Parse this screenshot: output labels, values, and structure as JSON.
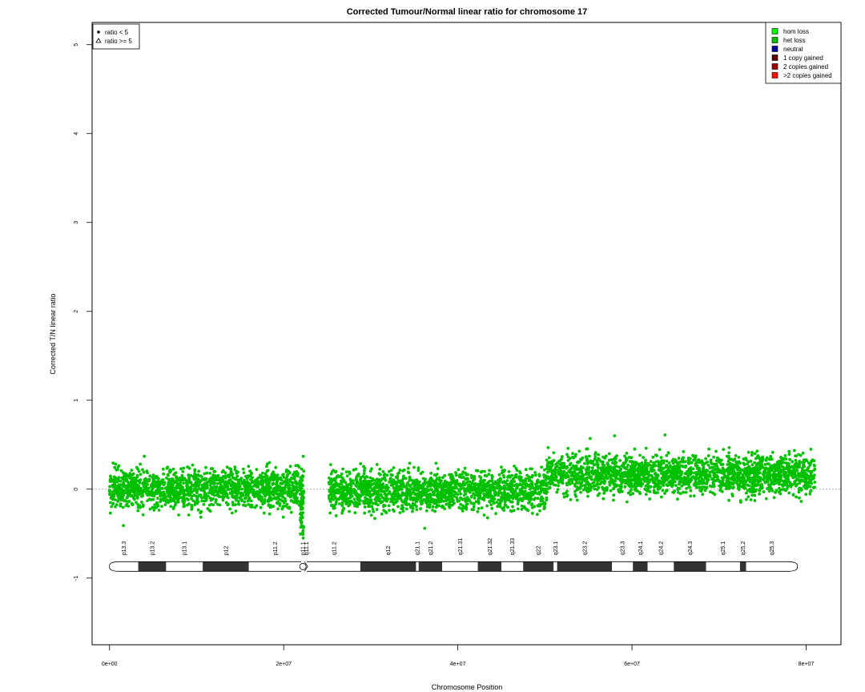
{
  "chart_data": {
    "type": "scatter",
    "title": "Corrected Tumour/Normal linear ratio for chromosome  17",
    "xlabel": "Chromosome Position",
    "ylabel": "Corrected T/N linear ratio",
    "xlim": [
      -2000000,
      84000000
    ],
    "ylim": [
      -1.75,
      5.25
    ],
    "x_ticks": [
      {
        "value": 0,
        "label": "0e+00"
      },
      {
        "value": 20000000,
        "label": "2e+07"
      },
      {
        "value": 40000000,
        "label": "4e+07"
      },
      {
        "value": 60000000,
        "label": "6e+07"
      },
      {
        "value": 80000000,
        "label": "8e+07"
      }
    ],
    "y_ticks": [
      {
        "value": -1,
        "label": "-1"
      },
      {
        "value": 0,
        "label": "0"
      },
      {
        "value": 1,
        "label": "1"
      },
      {
        "value": 2,
        "label": "2"
      },
      {
        "value": 3,
        "label": "3"
      },
      {
        "value": 4,
        "label": "4"
      },
      {
        "value": 5,
        "label": "5"
      }
    ],
    "reference_line": 0,
    "point_color": "#00c000",
    "segments": [
      {
        "x_start": 0,
        "x_end": 22300000,
        "mean": 0.0,
        "spread": 0.11
      },
      {
        "x_start": 25200000,
        "x_end": 50200000,
        "mean": -0.02,
        "spread": 0.11
      },
      {
        "x_start": 50200000,
        "x_end": 81000000,
        "mean": 0.16,
        "spread": 0.11
      }
    ],
    "notable_points": [
      {
        "x": 22250000,
        "y": -0.55
      },
      {
        "x": 22250000,
        "y": 0.37
      },
      {
        "x": 1600000,
        "y": -0.41
      },
      {
        "x": 55200000,
        "y": 0.57
      },
      {
        "x": 58000000,
        "y": 0.6
      },
      {
        "x": 63800000,
        "y": 0.61
      },
      {
        "x": 36200000,
        "y": -0.44
      },
      {
        "x": 4000000,
        "y": 0.37
      }
    ],
    "legend_shapes": {
      "placement": "top-left",
      "items": [
        {
          "label": "ratio < 5",
          "symbol": "dot"
        },
        {
          "label": "ratio >= 5",
          "symbol": "triangle"
        }
      ]
    },
    "legend_states": {
      "placement": "top-right",
      "items": [
        {
          "label": "hom loss",
          "color": "#00ff00"
        },
        {
          "label": "het loss",
          "color": "#00c000"
        },
        {
          "label": "neutral",
          "color": "#0000a0"
        },
        {
          "label": "1 copy gained",
          "color": "#600000"
        },
        {
          "label": "2 copies gained",
          "color": "#a00000"
        },
        {
          "label": ">2 copies gained",
          "color": "#ff1000"
        }
      ]
    },
    "ideogram": {
      "y": -0.87,
      "start": 0,
      "end": 79000000,
      "centromere": 22200000,
      "bands": [
        {
          "name": "p13.3",
          "start": 0,
          "end": 3300000,
          "stain": "light"
        },
        {
          "name": "p13.2",
          "start": 3300000,
          "end": 6500000,
          "stain": "dark"
        },
        {
          "name": "p13.1",
          "start": 6500000,
          "end": 10700000,
          "stain": "light"
        },
        {
          "name": "p12",
          "start": 10700000,
          "end": 16000000,
          "stain": "dark"
        },
        {
          "name": "p11.2",
          "start": 16000000,
          "end": 22000000,
          "stain": "light"
        },
        {
          "name": "p11.1",
          "start": 22000000,
          "end": 22400000,
          "stain": "cen"
        },
        {
          "name": "q11.1",
          "start": 22400000,
          "end": 22800000,
          "stain": "cen"
        },
        {
          "name": "q11.2",
          "start": 22800000,
          "end": 28800000,
          "stain": "light"
        },
        {
          "name": "q12",
          "start": 28800000,
          "end": 35200000,
          "stain": "dark"
        },
        {
          "name": "q21.1",
          "start": 35200000,
          "end": 35500000,
          "stain": "light"
        },
        {
          "name": "q21.2",
          "start": 35500000,
          "end": 38200000,
          "stain": "dark"
        },
        {
          "name": "q21.31",
          "start": 38200000,
          "end": 42300000,
          "stain": "light"
        },
        {
          "name": "q21.32",
          "start": 42300000,
          "end": 45000000,
          "stain": "dark"
        },
        {
          "name": "q21.33",
          "start": 45000000,
          "end": 47500000,
          "stain": "light"
        },
        {
          "name": "q22",
          "start": 47500000,
          "end": 51000000,
          "stain": "dark"
        },
        {
          "name": "q23.1",
          "start": 51000000,
          "end": 51400000,
          "stain": "light"
        },
        {
          "name": "q23.2",
          "start": 51400000,
          "end": 57700000,
          "stain": "dark"
        },
        {
          "name": "q23.3",
          "start": 57700000,
          "end": 60100000,
          "stain": "light"
        },
        {
          "name": "q24.1",
          "start": 60100000,
          "end": 61800000,
          "stain": "dark"
        },
        {
          "name": "q24.2",
          "start": 61800000,
          "end": 64800000,
          "stain": "light"
        },
        {
          "name": "q24.3",
          "start": 64800000,
          "end": 68500000,
          "stain": "dark"
        },
        {
          "name": "q25.1",
          "start": 68500000,
          "end": 72400000,
          "stain": "light"
        },
        {
          "name": "q25.2",
          "start": 72400000,
          "end": 73100000,
          "stain": "dark"
        },
        {
          "name": "q25.3",
          "start": 73100000,
          "end": 79000000,
          "stain": "light"
        }
      ]
    }
  }
}
